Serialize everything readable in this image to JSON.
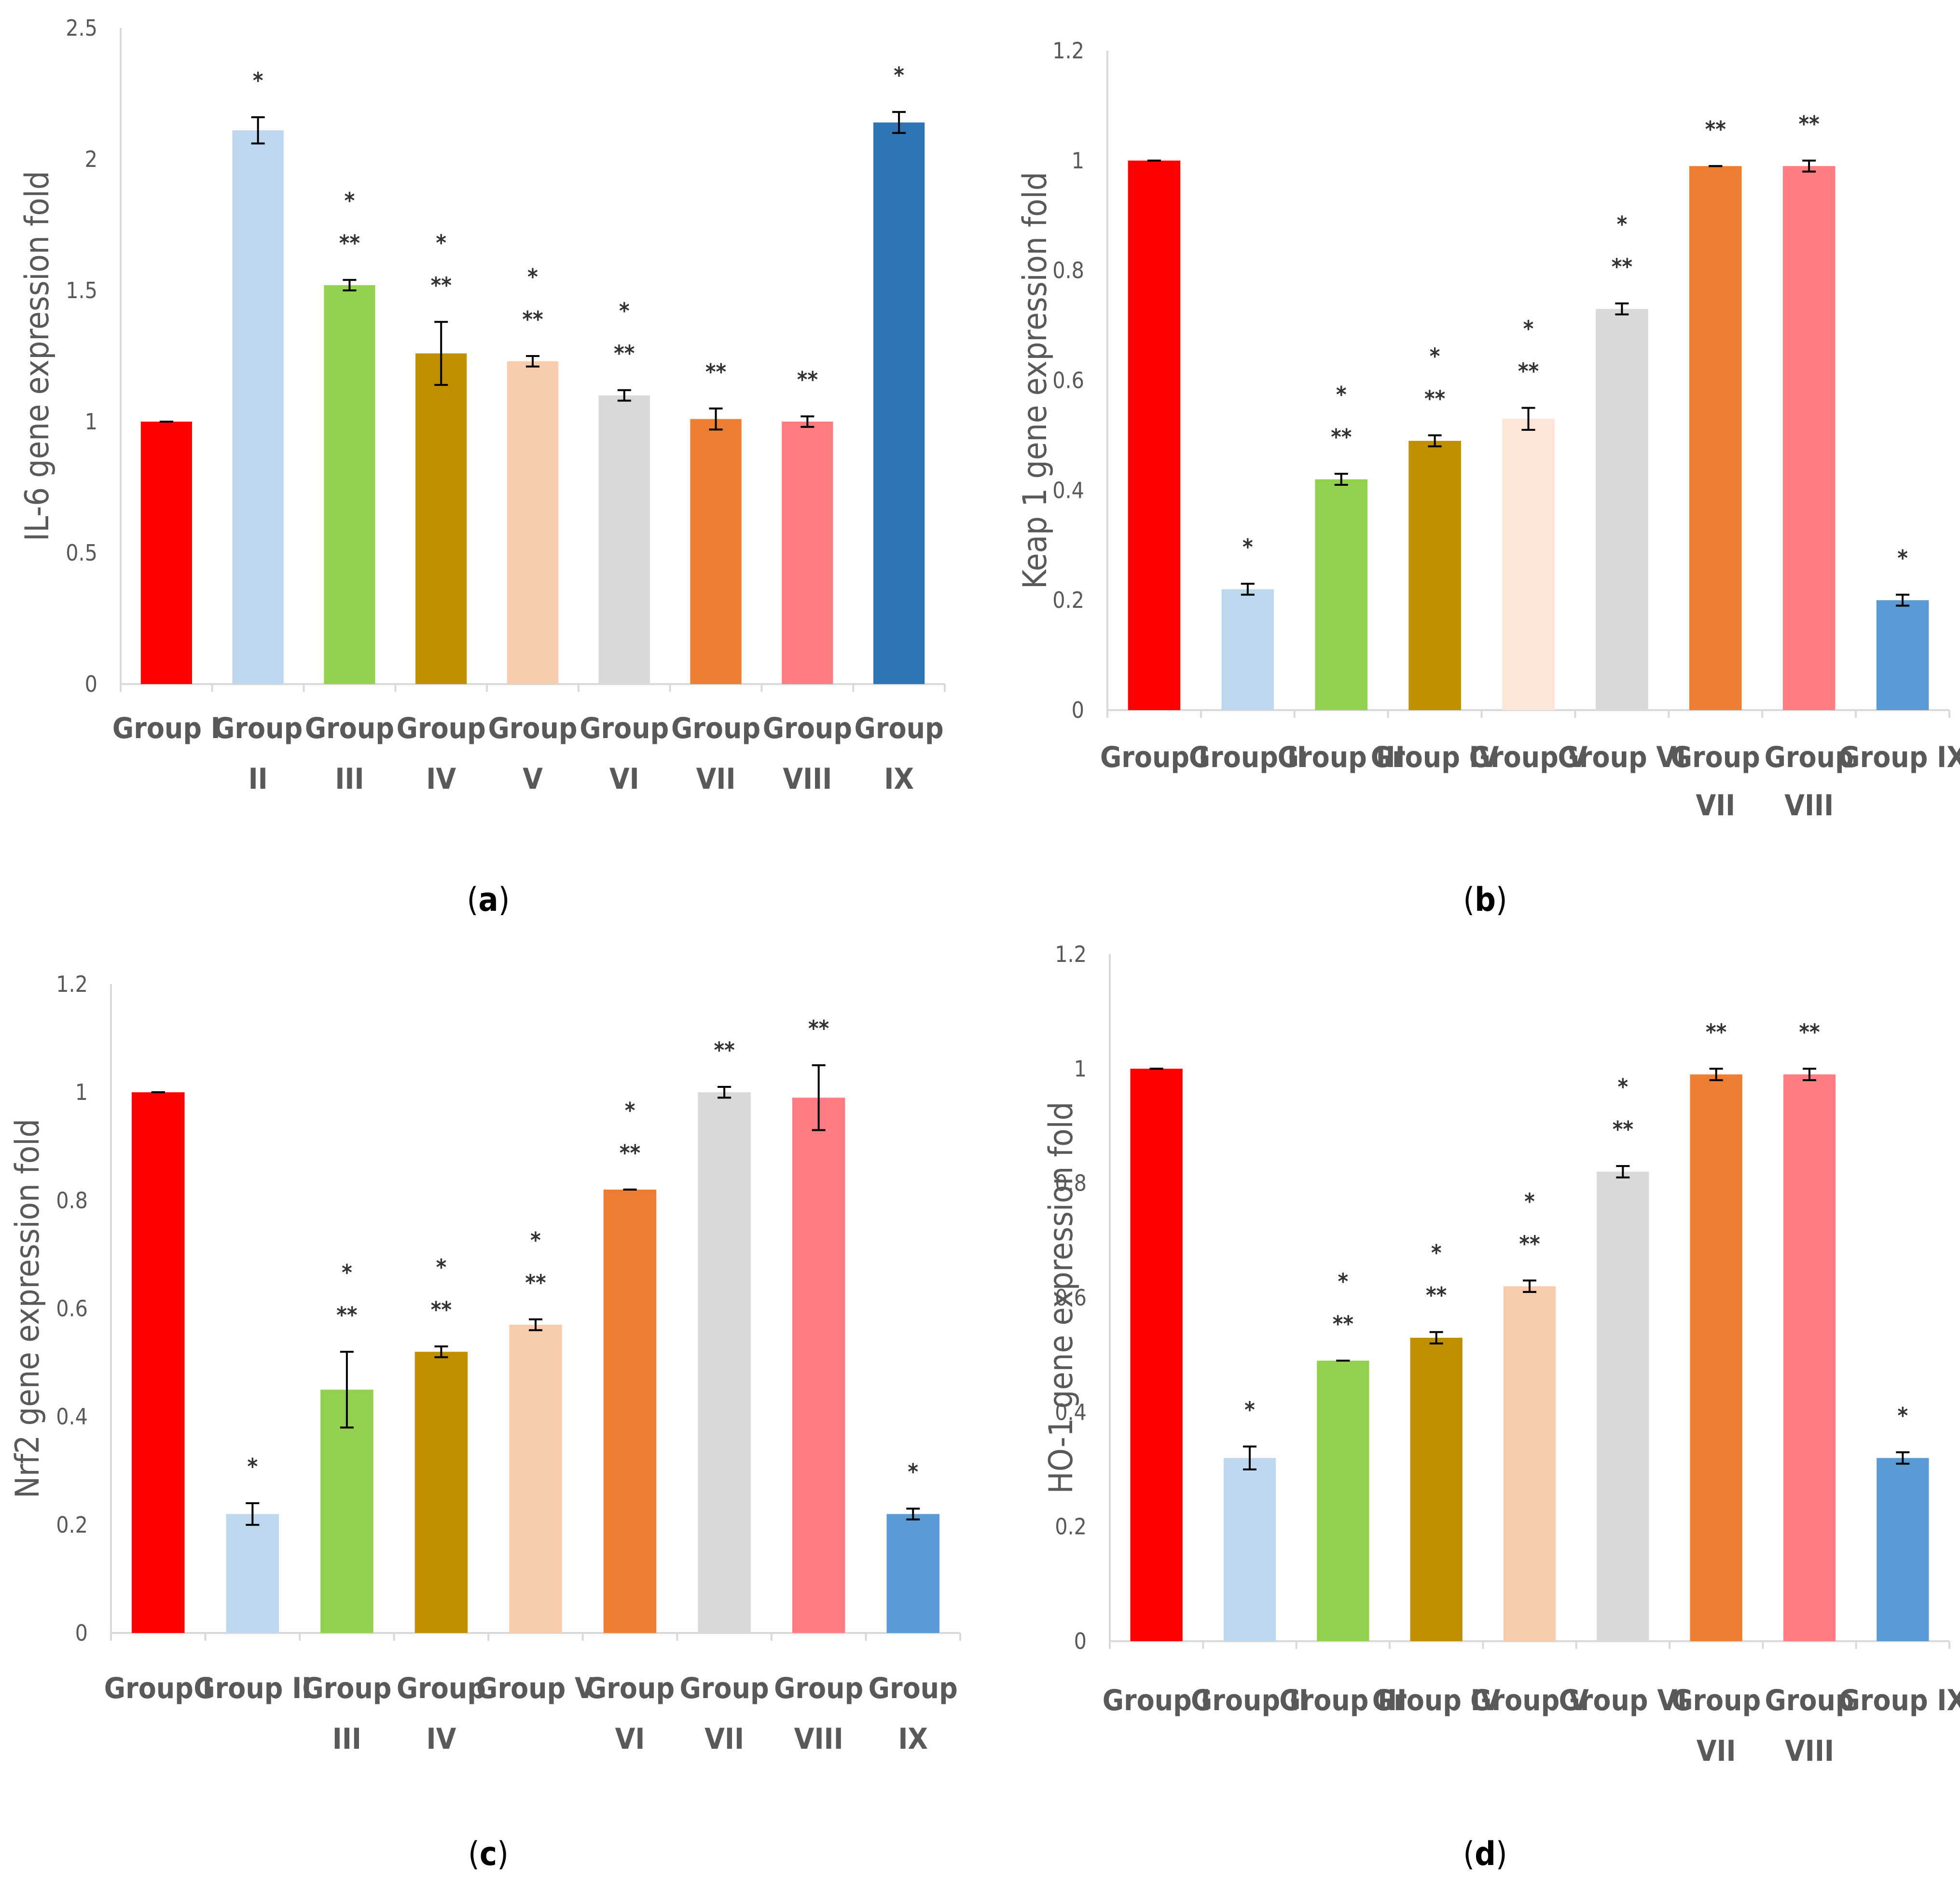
{
  "colors": {
    "group_i": "#ff0000",
    "group_ii": "#bdd7ee",
    "group_iii": "#92d050",
    "group_iv": "#bf8f00",
    "group_v": "#f8cbad",
    "group_vi": "#d9d9d9",
    "group_vii": "#ed7d31",
    "group_viii": "#ff7c80",
    "group_ix_dark": "#2e75b6",
    "group_ix": "#5b9bd5",
    "axis": "#d9d9d9",
    "text": "#595959"
  },
  "chart_data": [
    {
      "panel": "a",
      "type": "bar",
      "caption": "(a)",
      "ylabel": "IL-6 gene expression fold",
      "ylim": [
        0,
        2.5
      ],
      "yticks": [
        "0",
        "0.5",
        "1",
        "1.5",
        "2",
        "2.5"
      ],
      "categories": [
        [
          "Group I"
        ],
        [
          "Group",
          "II"
        ],
        [
          "Group",
          "III"
        ],
        [
          "Group",
          "IV"
        ],
        [
          "Group",
          "V"
        ],
        [
          "Group",
          "VI"
        ],
        [
          "Group",
          "VII"
        ],
        [
          "Group",
          "VIII"
        ],
        [
          "Group",
          "IX"
        ]
      ],
      "values": [
        1.0,
        2.11,
        1.52,
        1.26,
        1.23,
        1.1,
        1.01,
        1.0,
        2.14
      ],
      "errors": [
        0.0,
        0.05,
        0.02,
        0.12,
        0.02,
        0.02,
        0.04,
        0.02,
        0.04
      ],
      "significance": [
        [],
        [
          "*"
        ],
        [
          "*",
          "**"
        ],
        [
          "*",
          "**"
        ],
        [
          "*",
          "**"
        ],
        [
          "*",
          "**"
        ],
        [
          "**"
        ],
        [
          "**"
        ],
        [
          "*"
        ]
      ],
      "bar_colors": [
        "#ff0000",
        "#bdd7ee",
        "#92d050",
        "#bf8f00",
        "#f8cbad",
        "#d9d9d9",
        "#ed7d31",
        "#ff7c80",
        "#2e75b6"
      ]
    },
    {
      "panel": "b",
      "type": "bar",
      "caption": "(b)",
      "ylabel": "Keap 1 gene expression fold",
      "ylim": [
        0,
        1.2
      ],
      "yticks": [
        "0",
        "0.2",
        "0.4",
        "0.6",
        "0.8",
        "1",
        "1.2"
      ],
      "categories": [
        [
          "Group I"
        ],
        [
          "Group II"
        ],
        [
          "Group III"
        ],
        [
          "Group IV"
        ],
        [
          "Group V"
        ],
        [
          "Group VI"
        ],
        [
          "Group",
          "VII"
        ],
        [
          "Group",
          "VIII"
        ],
        [
          "Group IX"
        ]
      ],
      "values": [
        1.0,
        0.22,
        0.42,
        0.49,
        0.53,
        0.73,
        0.99,
        0.99,
        0.2
      ],
      "errors": [
        0.0,
        0.01,
        0.01,
        0.01,
        0.02,
        0.01,
        0.0,
        0.01,
        0.01
      ],
      "significance": [
        [],
        [
          "*"
        ],
        [
          "*",
          "**"
        ],
        [
          "*",
          "**"
        ],
        [
          "*",
          "**"
        ],
        [
          "*",
          "**"
        ],
        [
          "**"
        ],
        [
          "**"
        ],
        [
          "*"
        ]
      ],
      "bar_colors": [
        "#ff0000",
        "#bdd7ee",
        "#92d050",
        "#bf8f00",
        "#fce4d6",
        "#d9d9d9",
        "#ed7d31",
        "#ff7c80",
        "#5b9bd5"
      ]
    },
    {
      "panel": "c",
      "type": "bar",
      "caption": "(c)",
      "ylabel": "Nrf2 gene expression fold",
      "ylim": [
        0,
        1.2
      ],
      "yticks": [
        "0",
        "0.2",
        "0.4",
        "0.6",
        "0.8",
        "1",
        "1.2"
      ],
      "categories": [
        [
          "Group I"
        ],
        [
          "Group II"
        ],
        [
          "Group",
          "III"
        ],
        [
          "Group",
          "IV"
        ],
        [
          "Group V"
        ],
        [
          "Group",
          "VI"
        ],
        [
          "Group",
          "VII"
        ],
        [
          "Group",
          "VIII"
        ],
        [
          "Group",
          "IX"
        ]
      ],
      "values": [
        1.0,
        0.22,
        0.45,
        0.52,
        0.57,
        0.82,
        1.0,
        0.99,
        0.22
      ],
      "errors": [
        0.0,
        0.02,
        0.07,
        0.01,
        0.01,
        0.0,
        0.01,
        0.06,
        0.01
      ],
      "significance": [
        [],
        [
          "*"
        ],
        [
          "*",
          "**"
        ],
        [
          "*",
          "**"
        ],
        [
          "*",
          "**"
        ],
        [
          "*",
          "**"
        ],
        [
          "**"
        ],
        [
          "**"
        ],
        [
          "*"
        ]
      ],
      "bar_colors": [
        "#ff0000",
        "#bdd7ee",
        "#92d050",
        "#bf8f00",
        "#f8cbad",
        "#ed7d31",
        "#d9d9d9",
        "#ff7c80",
        "#5b9bd5"
      ]
    },
    {
      "panel": "d",
      "type": "bar",
      "caption": "(d)",
      "ylabel": "HO-1 gene expression fold",
      "ylim": [
        0,
        1.2
      ],
      "yticks": [
        "0",
        "0.2",
        "0.4",
        "0.6",
        "0.8",
        "1",
        "1.2"
      ],
      "categories": [
        [
          "Group I"
        ],
        [
          "Group II"
        ],
        [
          "Group III"
        ],
        [
          "Group IV"
        ],
        [
          "Group V"
        ],
        [
          "Group VI"
        ],
        [
          "Group",
          "VII"
        ],
        [
          "Group",
          "VIII"
        ],
        [
          "Group IX"
        ]
      ],
      "values": [
        1.0,
        0.32,
        0.49,
        0.53,
        0.62,
        0.82,
        0.99,
        0.99,
        0.32
      ],
      "errors": [
        0.0,
        0.02,
        0.0,
        0.01,
        0.01,
        0.01,
        0.01,
        0.01,
        0.01
      ],
      "significance": [
        [],
        [
          "*"
        ],
        [
          "*",
          "**"
        ],
        [
          "*",
          "**"
        ],
        [
          "*",
          "**"
        ],
        [
          "*",
          "**"
        ],
        [
          "**"
        ],
        [
          "**"
        ],
        [
          "*"
        ]
      ],
      "bar_colors": [
        "#ff0000",
        "#bdd7ee",
        "#92d050",
        "#bf8f00",
        "#f8cbad",
        "#d9d9d9",
        "#ed7d31",
        "#ff7c80",
        "#5b9bd5"
      ]
    }
  ]
}
